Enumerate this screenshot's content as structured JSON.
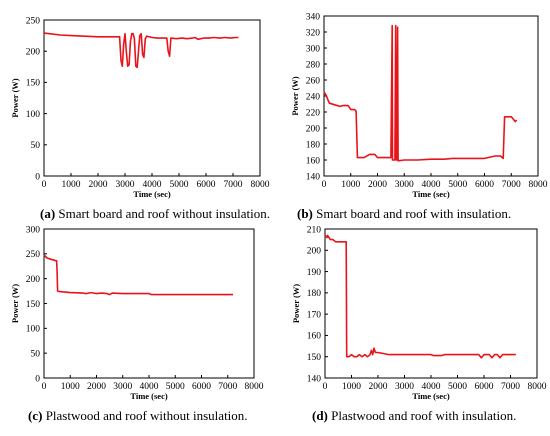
{
  "colors": {
    "line": "#e8141a",
    "axis": "#000000",
    "background": "#ffffff"
  },
  "chart_data": [
    {
      "type": "line",
      "panel_letter": "(a)",
      "caption": "Smart board and roof without insulation.",
      "xlabel": "Time (sec)",
      "ylabel": "Power (W)",
      "xlim": [
        0,
        8000
      ],
      "ylim": [
        0,
        250
      ],
      "xticks": [
        0,
        1000,
        2000,
        3000,
        4000,
        5000,
        6000,
        7000,
        8000
      ],
      "yticks": [
        0,
        50,
        100,
        150,
        200,
        250
      ],
      "grid": false,
      "series": [
        {
          "x": [
            0,
            200,
            600,
            1000,
            1500,
            2000,
            2600,
            2800,
            2850,
            2900,
            2950,
            3000,
            3050,
            3100,
            3150,
            3200,
            3250,
            3300,
            3350,
            3400,
            3450,
            3500,
            3550,
            3600,
            3650,
            3700,
            3750,
            3800,
            4000,
            4200,
            4400,
            4550,
            4600,
            4650,
            4700,
            4900,
            5100,
            5300,
            5500,
            5600,
            5700,
            5900,
            6100,
            6300,
            6500,
            6700,
            6900,
            7100,
            7200
          ],
          "y": [
            229,
            228,
            226,
            225,
            224,
            223,
            223,
            223,
            185,
            176,
            212,
            228,
            200,
            176,
            178,
            215,
            228,
            228,
            220,
            176,
            174,
            200,
            225,
            228,
            195,
            190,
            220,
            224,
            222,
            221,
            221,
            221,
            200,
            192,
            221,
            220,
            221,
            220,
            221,
            222,
            219,
            221,
            221,
            222,
            221,
            222,
            221,
            222,
            222
          ]
        }
      ]
    },
    {
      "type": "line",
      "panel_letter": "(b)",
      "caption": "Smart board and roof with insulation.",
      "xlabel": "Time (sec)",
      "ylabel": "Power (W)",
      "xlim": [
        0,
        8000
      ],
      "ylim": [
        140,
        340
      ],
      "xticks": [
        0,
        1000,
        2000,
        3000,
        4000,
        5000,
        6000,
        7000,
        8000
      ],
      "yticks": [
        140,
        160,
        180,
        200,
        220,
        240,
        260,
        280,
        300,
        320,
        340
      ],
      "grid": false,
      "series": [
        {
          "x": [
            0,
            80,
            150,
            200,
            400,
            600,
            700,
            800,
            900,
            1000,
            1150,
            1200,
            1250,
            1300,
            1500,
            1700,
            1900,
            2000,
            2400,
            2500,
            2550,
            2560,
            2650,
            2680,
            2700,
            2720,
            2750,
            2770,
            3000,
            3500,
            4000,
            4500,
            4800,
            5000,
            5500,
            6000,
            6400,
            6600,
            6700,
            6750,
            7000,
            7150,
            7200
          ],
          "y": [
            245,
            241,
            235,
            231,
            229,
            227,
            228,
            228,
            228,
            223,
            223,
            221,
            163,
            163,
            163,
            167,
            167,
            163,
            163,
            163,
            328,
            160,
            160,
            328,
            160,
            160,
            326,
            159,
            160,
            160,
            161,
            161,
            162,
            162,
            162,
            162,
            165,
            165,
            162,
            214,
            214,
            208,
            210
          ]
        }
      ]
    },
    {
      "type": "line",
      "panel_letter": "(c)",
      "caption": "Plastwood and roof without insulation.",
      "xlabel": "Time (sec)",
      "ylabel": "Power (W)",
      "xlim": [
        0,
        8000
      ],
      "ylim": [
        0,
        300
      ],
      "xticks": [
        0,
        1000,
        2000,
        3000,
        4000,
        5000,
        6000,
        7000,
        8000
      ],
      "yticks": [
        0,
        50,
        100,
        150,
        200,
        250,
        300
      ],
      "grid": false,
      "series": [
        {
          "x": [
            0,
            100,
            200,
            400,
            480,
            500,
            520,
            600,
            800,
            1000,
            1500,
            1600,
            1800,
            2000,
            2200,
            2400,
            2500,
            2600,
            3000,
            3500,
            4000,
            4100,
            4200,
            5000,
            6000,
            7000,
            7200
          ],
          "y": [
            248,
            242,
            240,
            237,
            236,
            215,
            175,
            174,
            173,
            172,
            171,
            170,
            172,
            170,
            171,
            170,
            168,
            171,
            170,
            170,
            170,
            168,
            168,
            168,
            168,
            168,
            168
          ]
        }
      ]
    },
    {
      "type": "line",
      "panel_letter": "(d)",
      "caption": "Plastwood and roof with insulation.",
      "xlabel": "Time (sec)",
      "ylabel": "Power (W)",
      "xlim": [
        0,
        8000
      ],
      "ylim": [
        140,
        210
      ],
      "xticks": [
        0,
        1000,
        2000,
        3000,
        4000,
        5000,
        6000,
        7000,
        8000
      ],
      "yticks": [
        140,
        150,
        160,
        170,
        180,
        190,
        200,
        210
      ],
      "grid": false,
      "series": [
        {
          "x": [
            0,
            80,
            100,
            200,
            300,
            400,
            500,
            600,
            700,
            800,
            820,
            900,
            1000,
            1100,
            1200,
            1300,
            1400,
            1500,
            1600,
            1700,
            1750,
            1800,
            1850,
            1900,
            2000,
            2200,
            2400,
            2600,
            3000,
            3500,
            4000,
            4100,
            4400,
            4500,
            5000,
            5500,
            5800,
            5900,
            6000,
            6200,
            6300,
            6400,
            6500,
            6600,
            6700,
            6800,
            7000,
            7200
          ],
          "y": [
            207,
            206,
            207,
            205,
            205,
            204,
            204,
            204,
            204,
            204,
            150,
            150,
            151,
            150,
            150,
            151,
            150,
            151,
            150,
            151,
            153,
            151,
            154,
            152,
            152,
            151.5,
            151,
            151,
            151,
            151,
            151,
            150.5,
            150.5,
            151,
            151,
            151,
            151,
            149.5,
            151,
            151,
            149.5,
            151,
            151,
            149.5,
            151,
            151,
            151,
            151
          ]
        }
      ]
    }
  ]
}
